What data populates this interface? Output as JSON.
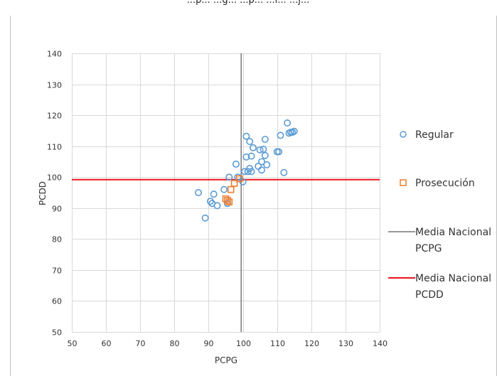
{
  "chart_data": {
    "type": "scatter",
    "title_partial": "...p... ...g... ...p... ...l... ...j...",
    "xlabel": "PCPG",
    "ylabel": "PCDD",
    "xlim": [
      50,
      140
    ],
    "ylim": [
      50,
      140
    ],
    "x_ticks": [
      50,
      60,
      70,
      80,
      90,
      100,
      110,
      120,
      130,
      140
    ],
    "y_ticks": [
      50,
      60,
      70,
      80,
      90,
      100,
      110,
      120,
      130,
      140
    ],
    "grid": true,
    "legend_position": "right",
    "series": [
      {
        "name": "Regular",
        "marker": "circle",
        "color": "#5b9bd5",
        "points": [
          [
            87.0,
            95.0
          ],
          [
            89.0,
            86.8
          ],
          [
            90.5,
            92.2
          ],
          [
            91.0,
            91.5
          ],
          [
            91.5,
            94.5
          ],
          [
            92.5,
            90.8
          ],
          [
            94.5,
            96.0
          ],
          [
            95.5,
            91.5
          ],
          [
            96.0,
            100.0
          ],
          [
            98.5,
            100.0
          ],
          [
            98.0,
            104.2
          ],
          [
            100.0,
            98.5
          ],
          [
            100.5,
            101.8
          ],
          [
            101.0,
            113.2
          ],
          [
            101.5,
            101.8
          ],
          [
            101.0,
            106.5
          ],
          [
            102.0,
            102.8
          ],
          [
            102.0,
            111.5
          ],
          [
            102.5,
            101.8
          ],
          [
            102.5,
            106.8
          ],
          [
            103.0,
            109.5
          ],
          [
            104.5,
            103.5
          ],
          [
            105.0,
            108.8
          ],
          [
            105.5,
            105.0
          ],
          [
            105.5,
            102.3
          ],
          [
            106.0,
            109.0
          ],
          [
            106.5,
            107.0
          ],
          [
            106.5,
            112.2
          ],
          [
            107.0,
            104.0
          ],
          [
            110.0,
            108.2
          ],
          [
            110.5,
            108.2
          ],
          [
            111.0,
            113.5
          ],
          [
            112.0,
            101.5
          ],
          [
            113.0,
            117.5
          ],
          [
            113.5,
            114.2
          ],
          [
            114.0,
            114.5
          ],
          [
            114.5,
            114.5
          ],
          [
            115.0,
            114.8
          ]
        ]
      },
      {
        "name": "Prosecución",
        "marker": "square",
        "color": "#ed7d31",
        "points": [
          [
            95.0,
            93.0
          ],
          [
            95.5,
            92.5
          ],
          [
            96.0,
            92.0
          ],
          [
            96.5,
            96.0
          ],
          [
            97.5,
            98.0
          ],
          [
            99.0,
            99.5
          ]
        ]
      },
      {
        "name": "Media Nacional PCPG",
        "type": "vline",
        "color": "#595959",
        "x": 99.5
      },
      {
        "name": "Media Nacional PCDD",
        "type": "hline",
        "color": "#e8141c",
        "y": 99.2
      }
    ]
  },
  "legend": {
    "regular": "Regular",
    "prosecucion": "Prosecución",
    "media_pcpg_line1": "Media Nacional",
    "media_pcpg_line2": "PCPG",
    "media_pcdd_line1": "Media Nacional",
    "media_pcdd_line2": "PCDD"
  }
}
